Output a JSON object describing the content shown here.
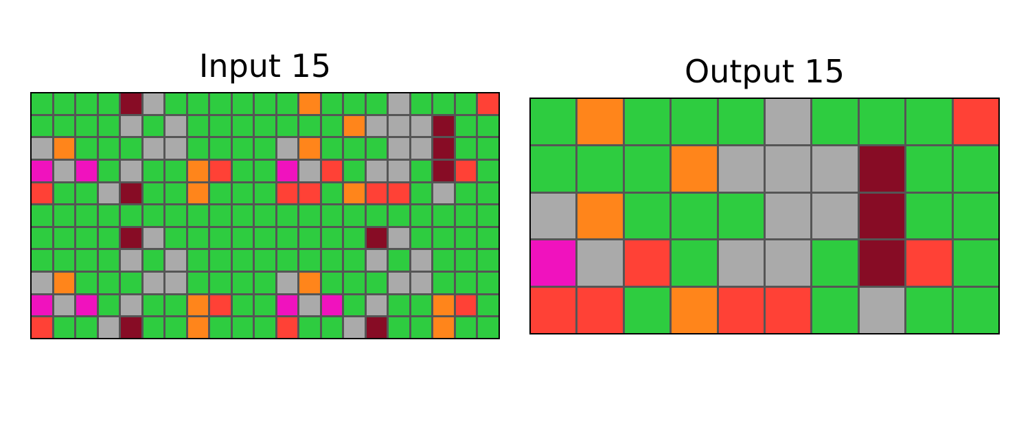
{
  "input": {
    "title": "Input 15",
    "rows": [
      [
        3,
        3,
        3,
        3,
        9,
        5,
        3,
        3,
        3,
        3,
        3,
        3,
        7,
        3,
        3,
        3,
        5,
        3,
        3,
        3,
        2
      ],
      [
        3,
        3,
        3,
        3,
        5,
        3,
        5,
        3,
        3,
        3,
        3,
        3,
        3,
        3,
        7,
        5,
        5,
        5,
        9,
        3,
        3
      ],
      [
        5,
        7,
        3,
        3,
        3,
        5,
        5,
        3,
        3,
        3,
        3,
        5,
        7,
        3,
        3,
        3,
        5,
        5,
        9,
        3,
        3
      ],
      [
        6,
        5,
        6,
        3,
        5,
        3,
        3,
        7,
        2,
        3,
        3,
        6,
        5,
        2,
        3,
        5,
        5,
        3,
        9,
        2,
        3
      ],
      [
        2,
        3,
        3,
        5,
        9,
        3,
        3,
        7,
        3,
        3,
        3,
        2,
        2,
        3,
        7,
        2,
        2,
        3,
        5,
        3,
        3
      ],
      [
        3,
        3,
        3,
        3,
        3,
        3,
        3,
        3,
        3,
        3,
        3,
        3,
        3,
        3,
        3,
        3,
        3,
        3,
        3,
        3,
        3
      ],
      [
        3,
        3,
        3,
        3,
        9,
        5,
        3,
        3,
        3,
        3,
        3,
        3,
        3,
        3,
        3,
        9,
        5,
        3,
        3,
        3,
        3
      ],
      [
        3,
        3,
        3,
        3,
        5,
        3,
        5,
        3,
        3,
        3,
        3,
        3,
        3,
        3,
        3,
        5,
        3,
        5,
        3,
        3,
        3
      ],
      [
        5,
        7,
        3,
        3,
        3,
        5,
        5,
        3,
        3,
        3,
        3,
        5,
        7,
        3,
        3,
        3,
        5,
        5,
        3,
        3,
        3
      ],
      [
        6,
        5,
        6,
        3,
        5,
        3,
        3,
        7,
        2,
        3,
        3,
        6,
        5,
        6,
        3,
        5,
        3,
        3,
        7,
        2,
        3
      ],
      [
        2,
        3,
        3,
        5,
        9,
        3,
        3,
        7,
        3,
        3,
        3,
        2,
        3,
        3,
        5,
        9,
        3,
        3,
        7,
        3,
        3
      ]
    ]
  },
  "output": {
    "title": "Output 15",
    "rows": [
      [
        3,
        7,
        3,
        3,
        3,
        5,
        3,
        3,
        3,
        2
      ],
      [
        3,
        3,
        3,
        7,
        5,
        5,
        5,
        9,
        3,
        3
      ],
      [
        5,
        7,
        3,
        3,
        3,
        5,
        5,
        9,
        3,
        3
      ],
      [
        6,
        5,
        2,
        3,
        5,
        5,
        3,
        9,
        2,
        3
      ],
      [
        2,
        2,
        3,
        7,
        2,
        2,
        3,
        5,
        3,
        3
      ]
    ]
  },
  "palette": {
    "2": "#FF4136",
    "3": "#2ECC40",
    "5": "#AAAAAA",
    "6": "#F012BE",
    "7": "#FF851B",
    "9": "#870C25"
  },
  "grid_line_color": "#555555"
}
